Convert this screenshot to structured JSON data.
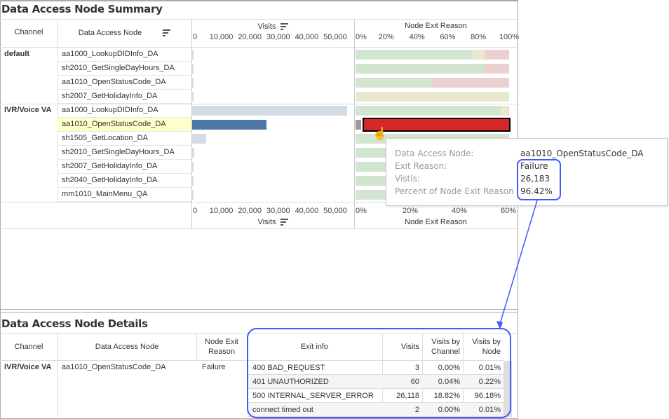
{
  "summary": {
    "title": "Data Access Node Summary",
    "headers": {
      "channel": "Channel",
      "node": "Data Access Node",
      "visits": "Visits",
      "exit": "Node Exit Reason"
    },
    "visits_ticks": [
      "0",
      "10,000",
      "20,000",
      "30,000",
      "40,000",
      "50,000"
    ],
    "exit_ticks": [
      "0%",
      "20%",
      "40%",
      "60%",
      "80%",
      "100%"
    ],
    "exit_ticks_bottom": [
      "0%",
      "20%",
      "40%",
      "60%"
    ],
    "colors": {
      "success": "#d1e5d0",
      "other": "#e8e8d0",
      "failure": "#ecd0d0",
      "failure_selected": "#d62728",
      "selected_bar": "#4e79a7",
      "bar": "#d3dce4",
      "gray": "#999999",
      "highlight": "#ffffcc"
    },
    "groups": [
      {
        "channel": "default",
        "rows": [
          {
            "node": "aa1000_LookupDIDInfo_DA",
            "visits": 150,
            "exit": [
              [
                "success",
                76
              ],
              [
                "other",
                8
              ],
              [
                "failure",
                16
              ]
            ]
          },
          {
            "node": "sh2010_GetSingleDayHours_DA",
            "visits": 150,
            "exit": [
              [
                "success",
                84
              ],
              [
                "failure",
                16
              ]
            ]
          },
          {
            "node": "aa1010_OpenStatusCode_DA",
            "visits": 150,
            "exit": [
              [
                "success",
                50
              ],
              [
                "failure",
                50
              ]
            ]
          },
          {
            "node": "sh2007_GetHolidayInfo_DA",
            "visits": 150,
            "exit": [
              [
                "other",
                100
              ]
            ]
          }
        ]
      },
      {
        "channel": "IVR/Voice VA",
        "rows": [
          {
            "node": "aa1000_LookupDIDInfo_DA",
            "visits": 54500,
            "exit": [
              [
                "success",
                94.5
              ],
              [
                "other",
                5
              ],
              [
                "failure",
                0.5
              ]
            ]
          },
          {
            "node": "aa1010_OpenStatusCode_DA",
            "visits": 26183,
            "selected": true,
            "exit": [
              [
                "gray",
                3.58
              ],
              [
                "failure_selected",
                96.42
              ]
            ]
          },
          {
            "node": "sh1505_GetLocation_DA",
            "visits": 4900,
            "exit": [
              [
                "success",
                99.5
              ],
              [
                "failure",
                0.5
              ]
            ]
          },
          {
            "node": "sh2010_GetSingleDayHours_DA",
            "visits": 700,
            "exit": [
              [
                "success",
                100
              ]
            ]
          },
          {
            "node": "sh2007_GetHolidayInfo_DA",
            "visits": 500,
            "exit": [
              [
                "success",
                100
              ]
            ]
          },
          {
            "node": "sh2040_GetHolidayInfo_DA",
            "visits": 150,
            "exit": [
              [
                "success",
                100
              ]
            ]
          },
          {
            "node": "mm1010_MainMenu_QA",
            "visits": 150,
            "exit": [
              [
                "success",
                100
              ]
            ]
          }
        ]
      }
    ]
  },
  "tooltip": {
    "labels": [
      "Data Access Node:",
      "Exit Reason:",
      "Vistis:",
      "Percent of Node Exit Reason"
    ],
    "values": [
      "aa1010_OpenStatusCode_DA",
      "Failure",
      "26,183",
      "96.42%"
    ]
  },
  "details": {
    "title": "Data Access Node Details",
    "headers": [
      "Channel",
      "Data Access Node",
      "Node Exit Reason",
      "Exit info",
      "Visits",
      "Visits by Channel",
      "Visits by Node"
    ],
    "channel": "IVR/Voice VA",
    "node": "aa1010_OpenStatusCode_DA",
    "reason": "Failure",
    "rows": [
      {
        "info": "400 BAD_REQUEST",
        "visits": "3",
        "by_channel": "0.00%",
        "by_node": "0.01%"
      },
      {
        "info": "401 UNAUTHORIZED",
        "visits": "60",
        "by_channel": "0.04%",
        "by_node": "0.22%"
      },
      {
        "info": "500 INTERNAL_SERVER_ERROR",
        "visits": "26,118",
        "by_channel": "18.82%",
        "by_node": "96.18%"
      },
      {
        "info": "connect timed out",
        "visits": "2",
        "by_channel": "0.00%",
        "by_node": "0.01%"
      }
    ]
  },
  "annotation_color": "#3d5afe"
}
